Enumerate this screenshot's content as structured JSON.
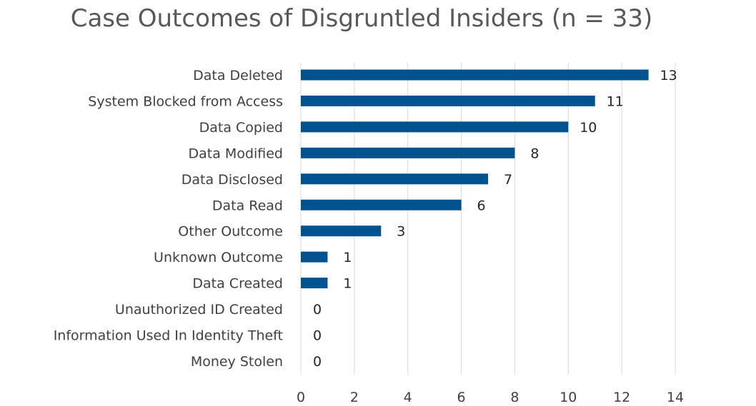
{
  "chart_data": {
    "type": "bar",
    "orientation": "horizontal",
    "title": "Case Outcomes of Disgruntled Insiders (n = 33)",
    "categories": [
      "Data Deleted",
      "System Blocked from Access",
      "Data Copied",
      "Data Modified",
      "Data Disclosed",
      "Data Read",
      "Other Outcome",
      "Unknown Outcome",
      "Data Created",
      "Unauthorized ID Created",
      "Information Used In Identity Theft",
      "Money Stolen"
    ],
    "values": [
      13,
      11,
      10,
      8,
      7,
      6,
      3,
      1,
      1,
      0,
      0,
      0
    ],
    "xlim": [
      0,
      14
    ],
    "xticks": [
      0,
      2,
      4,
      6,
      8,
      10,
      12,
      14
    ],
    "grid": "vertical",
    "legend": "none",
    "data_labels": true,
    "bar_color": "#00538f"
  }
}
